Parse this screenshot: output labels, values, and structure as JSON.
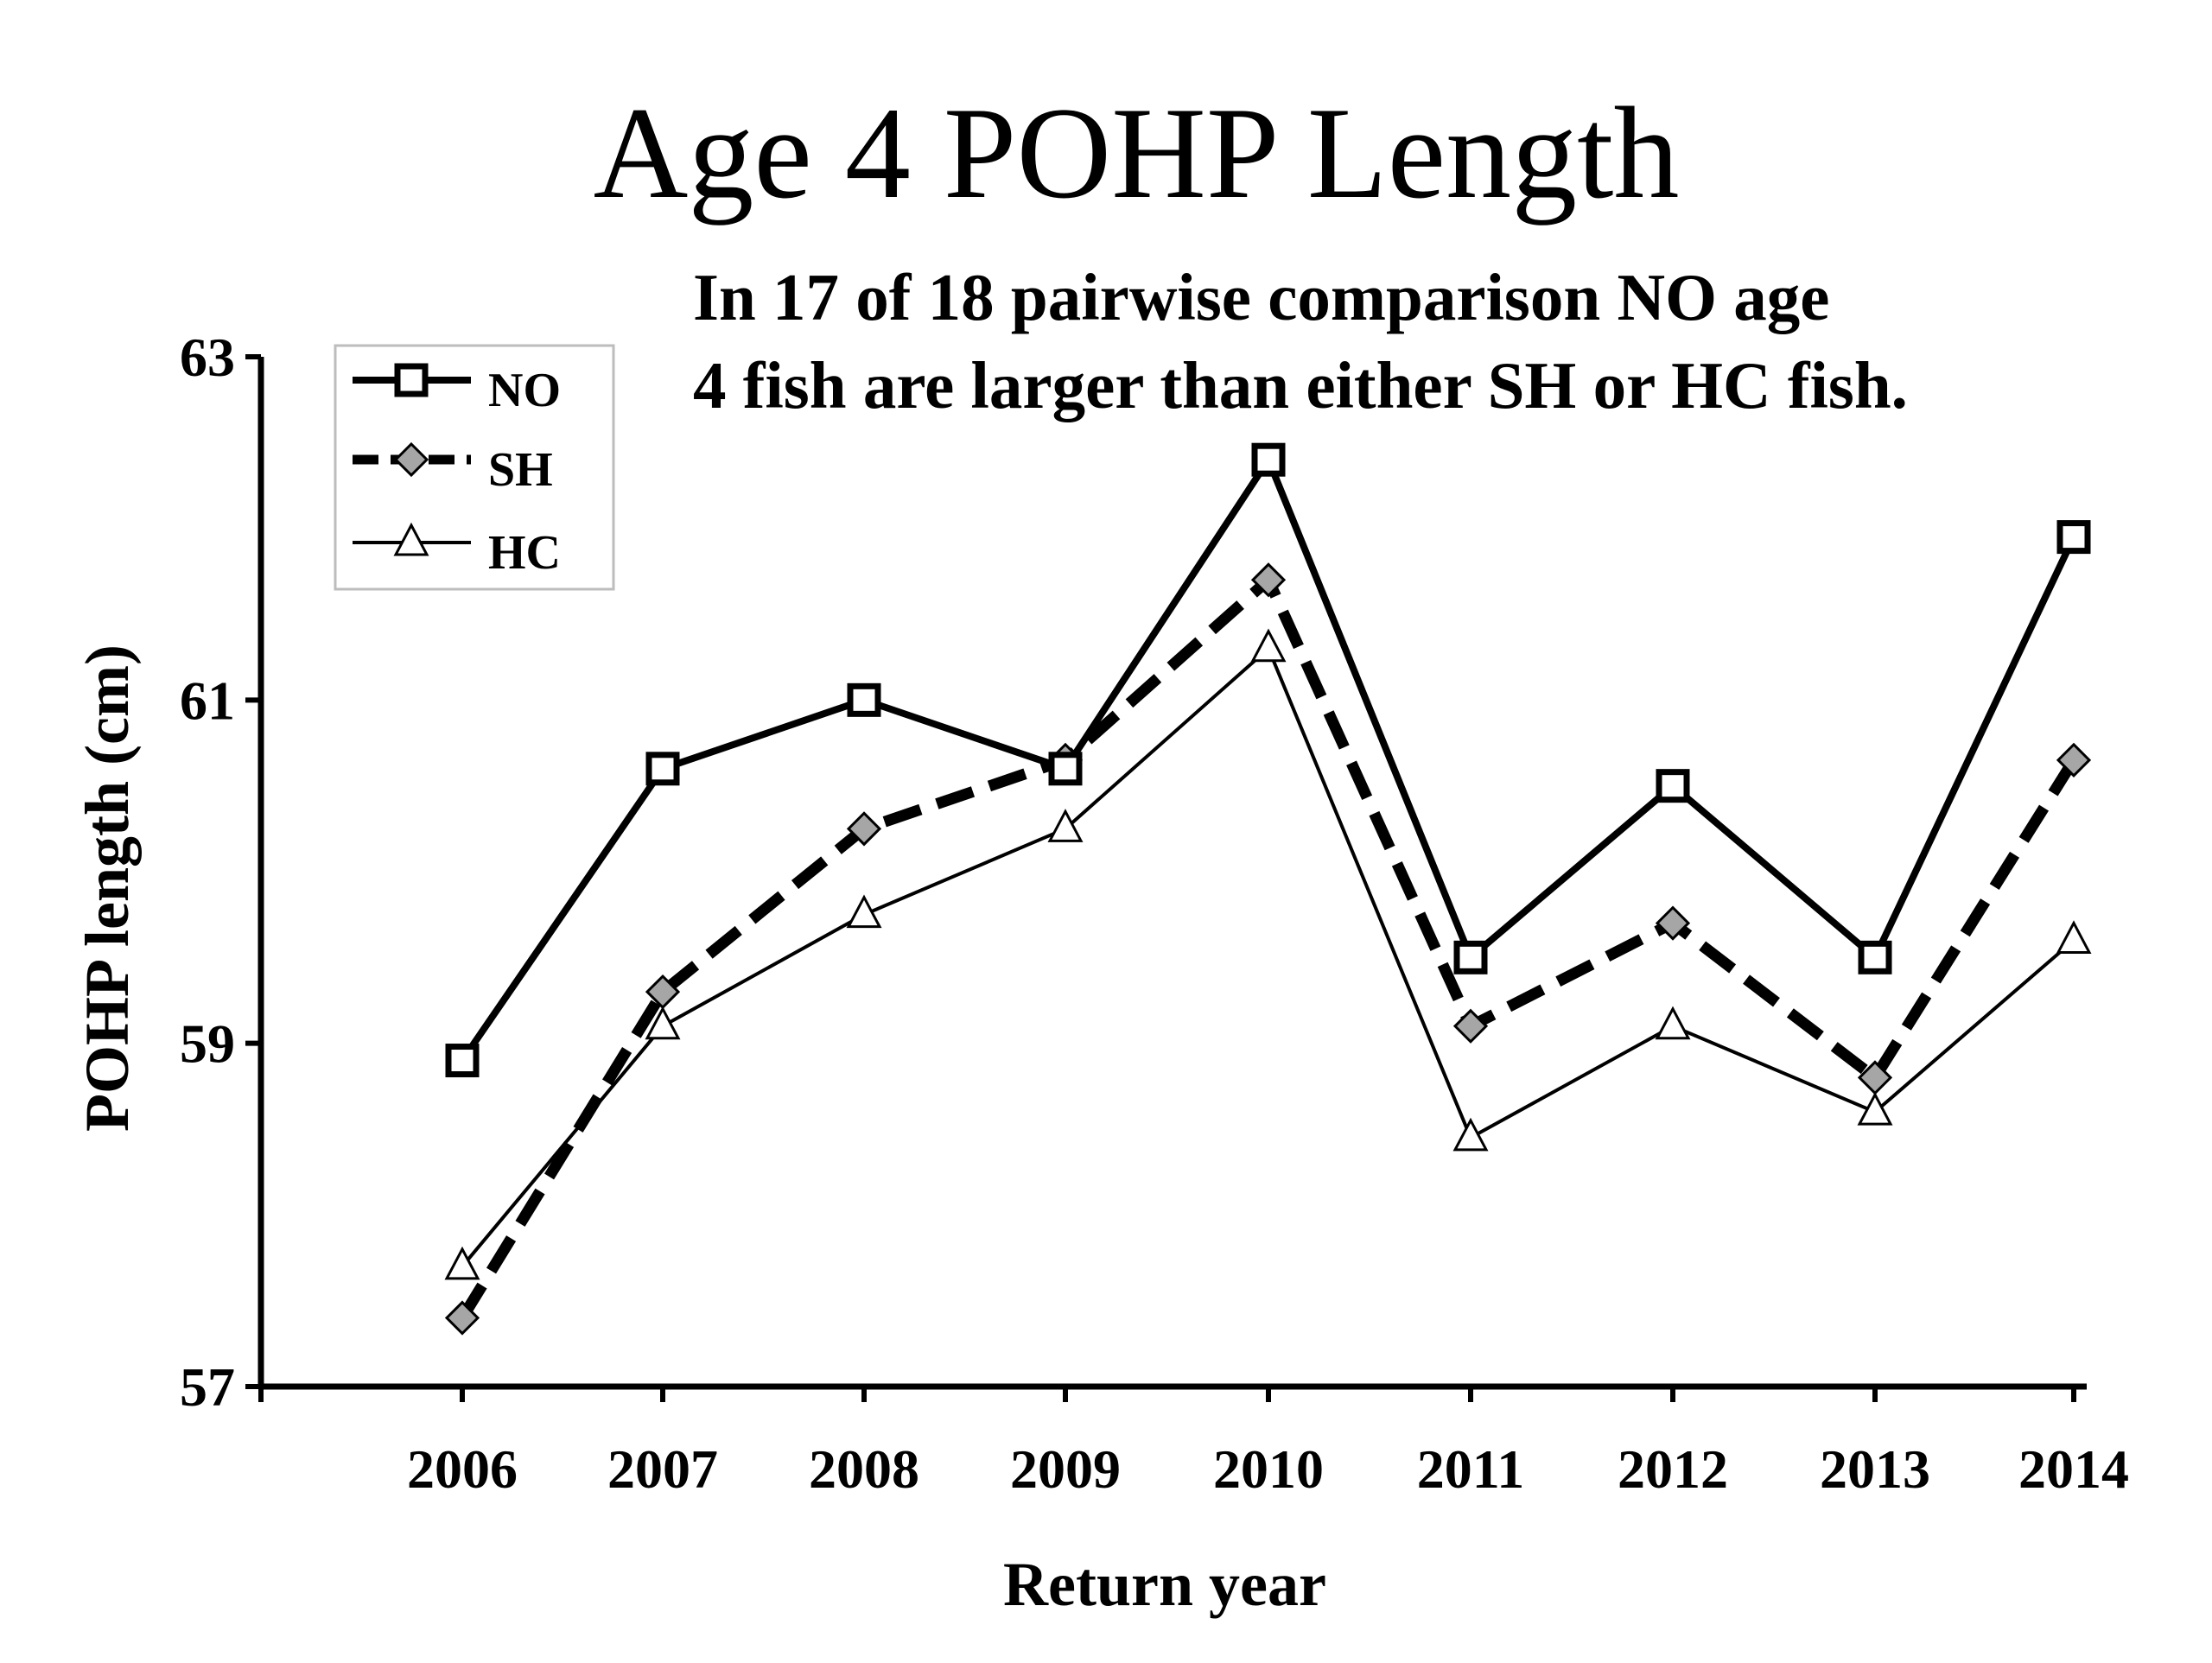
{
  "chart_data": {
    "type": "line",
    "title": "Age 4 POHP Length",
    "annotation": [
      "In 17 of 18 pairwise comparison NO age",
      "4 fish are larger than either SH or HC fish."
    ],
    "xlabel": "Return year",
    "ylabel": "POHP length (cm)",
    "categories": [
      "2006",
      "2007",
      "2008",
      "2009",
      "2010",
      "2011",
      "2012",
      "2013",
      "2014"
    ],
    "ylim": [
      57,
      63
    ],
    "yticks": [
      57,
      59,
      61,
      63
    ],
    "grid": false,
    "legend_position": "top-left",
    "series": [
      {
        "name": "NO",
        "marker": "square",
        "line": "solid-thick",
        "color": "#000000",
        "values": [
          58.9,
          60.6,
          61.0,
          60.6,
          62.4,
          59.5,
          60.5,
          59.5,
          61.95
        ]
      },
      {
        "name": "SH",
        "marker": "diamond",
        "line": "dashed-thick",
        "color": "#000000",
        "marker_fill": "#a6a6a6",
        "values": [
          57.4,
          59.3,
          60.25,
          60.65,
          61.7,
          59.1,
          59.7,
          58.8,
          60.65
        ]
      },
      {
        "name": "HC",
        "marker": "triangle",
        "line": "solid-thin",
        "color": "#000000",
        "values": [
          57.7,
          59.1,
          59.75,
          60.25,
          61.3,
          58.45,
          59.1,
          58.6,
          59.6
        ]
      }
    ]
  }
}
